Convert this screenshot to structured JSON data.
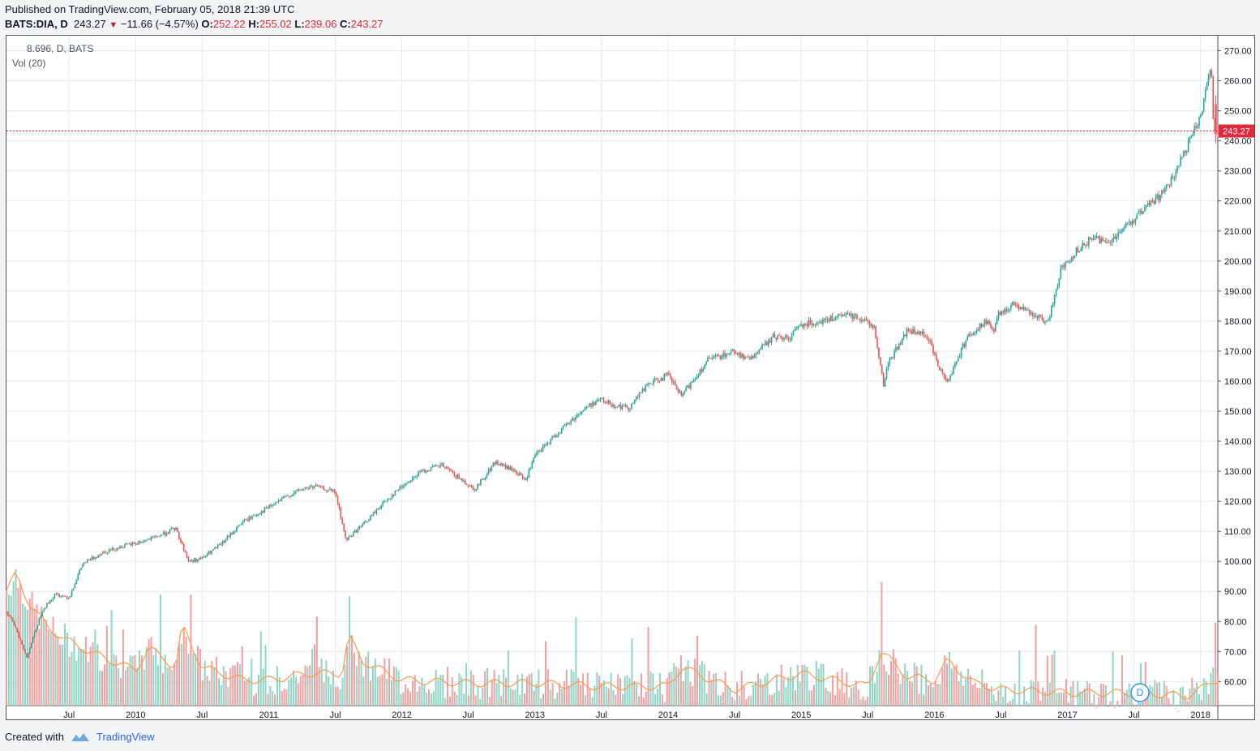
{
  "header": {
    "published": "Published on TradingView.com, February 05, 2018 21:39 UTC",
    "symbol": "BATS:DIA, D",
    "last": "243.27",
    "change": "−11.66 (−4.57%)",
    "o_label": "O:",
    "o_value": "252.22",
    "h_label": "H:",
    "h_value": "255.02",
    "l_label": "L:",
    "l_value": "239.06",
    "c_label": "C:",
    "c_value": "243.27"
  },
  "legend": {
    "volume_value": "8.696, D, BATS",
    "volume_study": "Vol (20)"
  },
  "price_badge": "243.27",
  "d_marker": "D",
  "footer": {
    "created_with": "Created with",
    "brand": "TradingView"
  },
  "colors": {
    "up": "#26a69a",
    "down": "#ef5350",
    "vol_up": "#8fd4c4",
    "vol_down": "#f0a0a0",
    "ma": "#ff9a4d",
    "last_price": "#e0293a",
    "grid": "#e1ecf2"
  },
  "chart_data": {
    "type": "line",
    "title": "",
    "xlabel": "",
    "ylabel": "",
    "ylim": [
      52,
      275
    ],
    "grid": true,
    "y_ticks": [
      60,
      70,
      80,
      90,
      100,
      110,
      120,
      130,
      140,
      150,
      160,
      170,
      180,
      190,
      200,
      210,
      220,
      230,
      240,
      250,
      260,
      270
    ],
    "y_tick_labels": [
      "60.00",
      "70.00",
      "80.00",
      "90.00",
      "100.00",
      "110.00",
      "120.00",
      "130.00",
      "140.00",
      "150.00",
      "160.00",
      "170.00",
      "180.00",
      "190.00",
      "200.00",
      "210.00",
      "220.00",
      "230.00",
      "240.00",
      "250.00",
      "260.00",
      "270.00"
    ],
    "x_ticks": [
      "Jul",
      "2010",
      "Jul",
      "2011",
      "Jul",
      "2012",
      "Jul",
      "2013",
      "Jul",
      "2014",
      "Jul",
      "2015",
      "Jul",
      "2016",
      "Jul",
      "2017",
      "Jul",
      "2018"
    ],
    "x_tick_dates": [
      2009.5,
      2010,
      2010.5,
      2011,
      2011.5,
      2012,
      2012.5,
      2013,
      2013.5,
      2014,
      2014.5,
      2015,
      2015.5,
      2016,
      2016.5,
      2017,
      2017.5,
      2018
    ],
    "x_range": [
      2009.03,
      2018.13
    ],
    "last_price": 243.27,
    "series": [
      {
        "x": [
          2009.03,
          2009.1,
          2009.18,
          2009.3,
          2009.4,
          2009.5,
          2009.6,
          2009.75,
          2009.9,
          2010.0,
          2010.15,
          2010.3,
          2010.4,
          2010.5,
          2010.65,
          2010.8,
          2011.0,
          2011.15,
          2011.25,
          2011.35,
          2011.5,
          2011.58,
          2011.65,
          2011.75,
          2011.85,
          2012.0,
          2012.15,
          2012.3,
          2012.42,
          2012.55,
          2012.7,
          2012.85,
          2012.93,
          2013.0,
          2013.2,
          2013.35,
          2013.48,
          2013.6,
          2013.7,
          2013.85,
          2014.0,
          2014.1,
          2014.3,
          2014.5,
          2014.6,
          2014.8,
          2014.9,
          2015.0,
          2015.15,
          2015.35,
          2015.45,
          2015.55,
          2015.62,
          2015.65,
          2015.8,
          2015.95,
          2016.03,
          2016.1,
          2016.25,
          2016.4,
          2016.45,
          2016.48,
          2016.6,
          2016.75,
          2016.85,
          2016.95,
          2017.1,
          2017.2,
          2017.3,
          2017.5,
          2017.7,
          2017.8,
          2017.9,
          2018.0,
          2018.05,
          2018.08,
          2018.1
        ],
        "y": [
          83,
          78,
          68,
          84,
          89,
          88,
          99,
          103,
          105,
          106,
          108,
          111,
          100,
          101,
          106,
          113,
          118,
          122,
          124,
          125,
          123,
          107,
          110,
          114,
          119,
          125,
          130,
          132,
          128,
          124,
          133,
          130,
          127,
          135,
          144,
          150,
          154,
          152,
          151,
          159,
          162,
          155,
          167,
          170,
          167,
          175,
          174,
          179,
          180,
          182,
          181,
          178,
          158,
          166,
          177,
          175,
          165,
          160,
          175,
          180,
          176,
          182,
          186,
          182,
          179,
          197,
          205,
          208,
          206,
          214,
          222,
          228,
          238,
          248,
          260,
          265,
          243
        ]
      }
    ],
    "volume_series": {
      "name": "Vol (20)",
      "ylim_top_value": 90,
      "x": [
        2009.03,
        2009.1,
        2009.2,
        2009.35,
        2009.5,
        2009.7,
        2010.0,
        2010.1,
        2010.3,
        2010.35,
        2010.5,
        2010.8,
        2011.0,
        2011.3,
        2011.55,
        2011.6,
        2011.7,
        2012.0,
        2012.5,
        2013.0,
        2013.5,
        2014.0,
        2014.1,
        2014.5,
        2014.8,
        2015.0,
        2015.5,
        2015.6,
        2015.8,
        2016.0,
        2016.1,
        2016.3,
        2016.5,
        2017.0,
        2017.5,
        2017.9,
        2018.0,
        2018.1
      ],
      "ma": [
        88,
        93,
        84,
        76,
        72,
        68,
        63,
        70,
        64,
        77,
        64,
        60,
        60,
        62,
        62,
        74,
        66,
        60,
        59,
        59,
        58,
        58,
        64,
        57,
        60,
        62,
        58,
        69,
        61,
        60,
        66,
        59,
        57,
        56,
        56,
        55,
        57,
        60
      ]
    }
  }
}
